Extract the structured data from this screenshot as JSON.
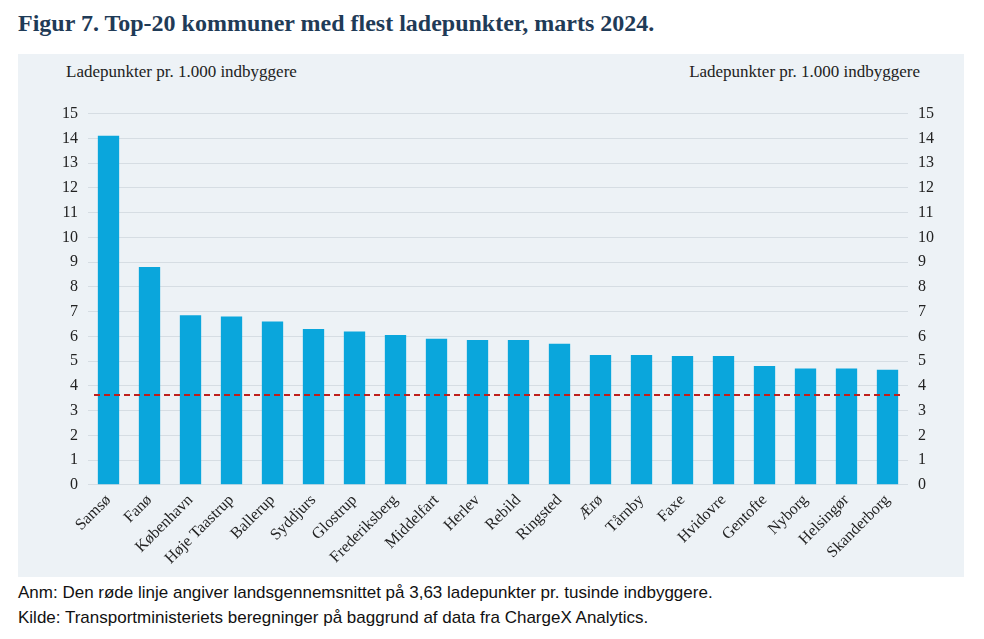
{
  "chart_data": {
    "type": "bar",
    "title": "Figur 7. Top-20 kommuner med flest ladepunkter, marts 2024.",
    "y_label": "Ladepunkter pr. 1.000 indbyggere",
    "y2_label": "Ladepunkter pr. 1.000 indbyggere",
    "categories": [
      "Samsø",
      "Fanø",
      "København",
      "Høje Taastrup",
      "Ballerup",
      "Syddjurs",
      "Glostrup",
      "Frederiksberg",
      "Middelfart",
      "Herlev",
      "Rebild",
      "Ringsted",
      "Ærø",
      "Tårnby",
      "Faxe",
      "Hvidovre",
      "Gentofte",
      "Nyborg",
      "Helsingør",
      "Skanderborg"
    ],
    "values": [
      14.1,
      8.8,
      6.85,
      6.8,
      6.6,
      6.3,
      6.2,
      6.05,
      5.9,
      5.85,
      5.85,
      5.7,
      5.25,
      5.25,
      5.2,
      5.2,
      4.8,
      4.7,
      4.7,
      4.65
    ],
    "color": "#0aa6dc",
    "ylim": [
      0,
      15
    ],
    "yticks": [
      0,
      1,
      2,
      3,
      4,
      5,
      6,
      7,
      8,
      9,
      10,
      11,
      12,
      13,
      14,
      15
    ],
    "y2lim": [
      0,
      15
    ],
    "y2ticks": [
      0,
      1,
      2,
      3,
      4,
      5,
      6,
      7,
      8,
      9,
      10,
      11,
      12,
      13,
      14,
      15
    ],
    "grid": true,
    "annotations": [
      {
        "type": "hline",
        "value": 3.63,
        "color": "#c0201c",
        "line_style": "dashed"
      }
    ],
    "note": "Anm: Den røde linje angiver landsgennemsnittet på 3,63 ladepunkter pr. tusinde indbyggere.",
    "source": "Kilde: Transportministeriets beregninger på baggrund af data fra ChargeX Analytics."
  }
}
